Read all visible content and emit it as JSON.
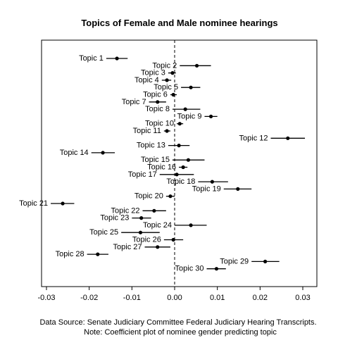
{
  "chart_data": {
    "type": "scatter",
    "subtype": "coefficient-plot",
    "title": "Topics of Female and Male nominee hearings",
    "xlabel": "",
    "ylabel": "",
    "xlim": [
      -0.0305,
      0.033
    ],
    "xticks": [
      -0.03,
      -0.02,
      -0.01,
      0.0,
      0.01,
      0.02,
      0.03
    ],
    "xtick_labels": [
      "-0.03",
      "-0.02",
      "-0.01",
      "0.00",
      "0.01",
      "0.02",
      "0.03"
    ],
    "reference_line": {
      "x": 0,
      "style": "dashed"
    },
    "grid": false,
    "points": [
      {
        "label": "Topic 1",
        "estimate": -0.0135,
        "lower": -0.016,
        "upper": -0.011
      },
      {
        "label": "Topic 2",
        "estimate": 0.0052,
        "lower": 0.0012,
        "upper": 0.0085
      },
      {
        "label": "Topic 3",
        "estimate": -0.0005,
        "lower": -0.0015,
        "upper": 0.0003
      },
      {
        "label": "Topic 4",
        "estimate": -0.0018,
        "lower": -0.003,
        "upper": -0.0008
      },
      {
        "label": "Topic 5",
        "estimate": 0.0038,
        "lower": 0.0015,
        "upper": 0.006
      },
      {
        "label": "Topic 6",
        "estimate": -0.0003,
        "lower": -0.001,
        "upper": 0.0005
      },
      {
        "label": "Topic 7",
        "estimate": -0.004,
        "lower": -0.006,
        "upper": -0.002
      },
      {
        "label": "Topic 8",
        "estimate": 0.0025,
        "lower": -0.0005,
        "upper": 0.006
      },
      {
        "label": "Topic 9",
        "estimate": 0.0085,
        "lower": 0.007,
        "upper": 0.01
      },
      {
        "label": "Topic 10",
        "estimate": 0.0012,
        "lower": 0.0005,
        "upper": 0.002
      },
      {
        "label": "Topic 11",
        "estimate": -0.0018,
        "lower": -0.0025,
        "upper": -0.001
      },
      {
        "label": "Topic 12",
        "estimate": 0.0265,
        "lower": 0.0225,
        "upper": 0.0305
      },
      {
        "label": "Topic 13",
        "estimate": 0.001,
        "lower": -0.0015,
        "upper": 0.0035
      },
      {
        "label": "Topic 14",
        "estimate": -0.0168,
        "lower": -0.0195,
        "upper": -0.014
      },
      {
        "label": "Topic 15",
        "estimate": 0.0032,
        "lower": -0.0005,
        "upper": 0.007
      },
      {
        "label": "Topic 16",
        "estimate": 0.002,
        "lower": 0.001,
        "upper": 0.003
      },
      {
        "label": "Topic 17",
        "estimate": 0.0005,
        "lower": -0.0035,
        "upper": 0.0045
      },
      {
        "label": "Topic 18",
        "estimate": 0.0088,
        "lower": 0.0055,
        "upper": 0.0125
      },
      {
        "label": "Topic 19",
        "estimate": 0.0148,
        "lower": 0.0115,
        "upper": 0.018
      },
      {
        "label": "Topic 20",
        "estimate": -0.001,
        "lower": -0.002,
        "upper": 0.0
      },
      {
        "label": "Topic 21",
        "estimate": -0.0262,
        "lower": -0.029,
        "upper": -0.0235
      },
      {
        "label": "Topic 22",
        "estimate": -0.0048,
        "lower": -0.0075,
        "upper": -0.002
      },
      {
        "label": "Topic 23",
        "estimate": -0.0078,
        "lower": -0.01,
        "upper": -0.0055
      },
      {
        "label": "Topic 24",
        "estimate": 0.0038,
        "lower": 0.0,
        "upper": 0.0075
      },
      {
        "label": "Topic 25",
        "estimate": -0.008,
        "lower": -0.0125,
        "upper": -0.0035
      },
      {
        "label": "Topic 26",
        "estimate": -0.0003,
        "lower": -0.0025,
        "upper": 0.002
      },
      {
        "label": "Topic 27",
        "estimate": -0.004,
        "lower": -0.007,
        "upper": -0.001
      },
      {
        "label": "Topic 28",
        "estimate": -0.018,
        "lower": -0.0205,
        "upper": -0.0155
      },
      {
        "label": "Topic 29",
        "estimate": 0.0212,
        "lower": 0.018,
        "upper": 0.0245
      },
      {
        "label": "Topic 30",
        "estimate": 0.0098,
        "lower": 0.0075,
        "upper": 0.012
      }
    ]
  },
  "caption": {
    "line1": "Data Source: Senate Judiciary Committee Federal Judiciary Hearing Transcripts.",
    "line2": "Note: Coefficient plot of nominee gender predicting topic"
  }
}
